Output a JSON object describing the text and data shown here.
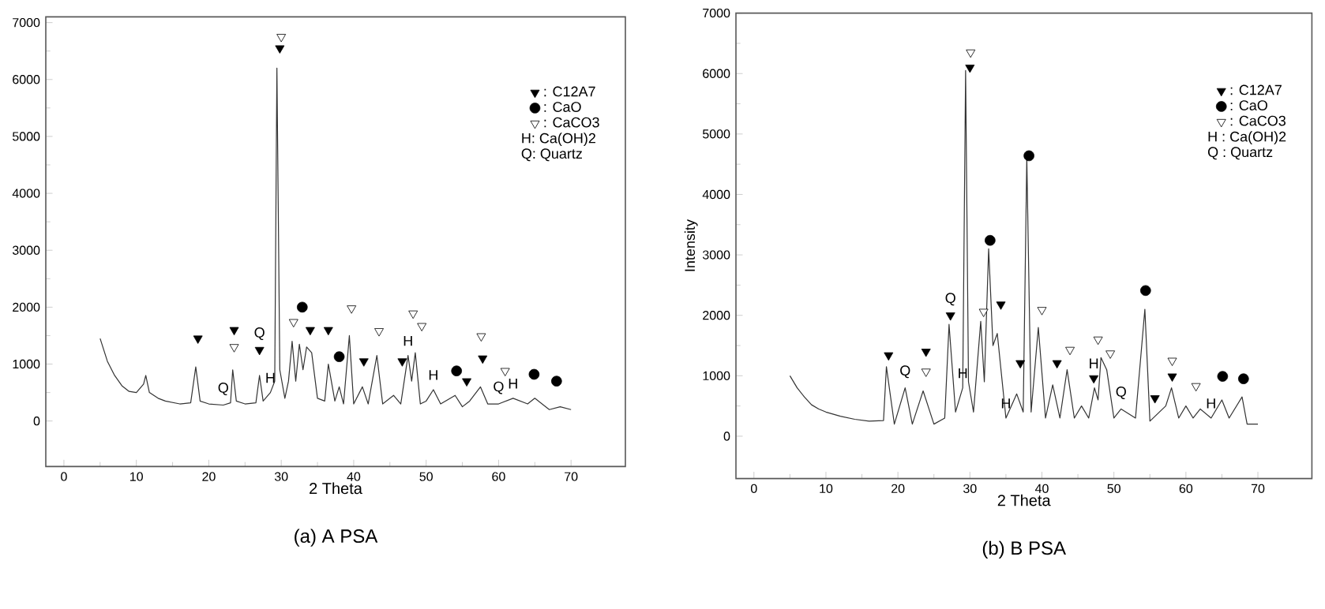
{
  "chart_data": [
    {
      "type": "line",
      "title": "(a) A PSA",
      "xlabel": "2 Theta",
      "legend": "top right",
      "xlim": [
        -2.5,
        77.5
      ],
      "ylim": [
        -800,
        7100
      ],
      "xticks": [
        0,
        10,
        20,
        30,
        40,
        50,
        60,
        70
      ],
      "yticks": [
        0,
        1000,
        2000,
        3000,
        4000,
        5000,
        6000,
        7000
      ],
      "series": [
        {
          "color": "#333333",
          "x": [
            5,
            6,
            7,
            8,
            9,
            10,
            11,
            11.3,
            11.8,
            13,
            14,
            16,
            17.5,
            18.2,
            18.8,
            20,
            22,
            23,
            23.3,
            23.8,
            25,
            26.5,
            27,
            27.5,
            28.5,
            29.1,
            29.4,
            29.8,
            30.5,
            31,
            31.5,
            32,
            32.5,
            33,
            33.5,
            34.2,
            35,
            36,
            36.5,
            37.4,
            38,
            38.6,
            39.4,
            40,
            41.2,
            42,
            43.2,
            44,
            45.5,
            46.5,
            47.5,
            48,
            48.5,
            49.2,
            50,
            51,
            52,
            54,
            55,
            56,
            57.5,
            58.5,
            60,
            62,
            64,
            65,
            67,
            68.5,
            70
          ],
          "values": [
            1450,
            1050,
            800,
            620,
            520,
            500,
            650,
            800,
            500,
            400,
            350,
            300,
            320,
            950,
            350,
            300,
            280,
            320,
            900,
            350,
            300,
            320,
            800,
            350,
            500,
            700,
            6200,
            900,
            400,
            700,
            1400,
            700,
            1350,
            900,
            1300,
            1200,
            400,
            350,
            1000,
            350,
            600,
            300,
            1500,
            300,
            600,
            300,
            1150,
            300,
            450,
            300,
            1150,
            700,
            1200,
            300,
            350,
            550,
            300,
            450,
            250,
            350,
            600,
            300,
            300,
            400,
            300,
            400,
            200,
            250,
            200
          ]
        },
        {
          "type": "scatter",
          "name": ": C12A7",
          "marker": "triangle",
          "color": "#000000",
          "x": [
            18.5,
            23.5,
            27.0,
            29.8,
            34.0,
            36.5,
            41.4,
            46.7,
            55.6,
            57.8
          ],
          "values": [
            1450,
            1600,
            1250,
            6550,
            1600,
            1600,
            1050,
            1050,
            700,
            1100
          ]
        },
        {
          "type": "scatter",
          "name": ": CaO",
          "marker": "circle",
          "color": "#000000",
          "x": [
            32.9,
            38.0,
            54.2,
            64.9,
            68.0
          ],
          "values": [
            2000,
            1130,
            880,
            820,
            700
          ]
        },
        {
          "type": "scatter",
          "name": ": CaCO3",
          "marker": "triangle",
          "color": "#ffffff",
          "x": [
            23.5,
            30.0,
            31.7,
            39.7,
            43.5,
            48.2,
            49.4,
            57.6,
            60.9
          ],
          "values": [
            1300,
            6750,
            1740,
            1980,
            1580,
            1890,
            1670,
            1490,
            880
          ]
        }
      ],
      "annotations": [
        "H: Ca(OH)2",
        "Q: Quartz",
        {
          "text": "H",
          "x": 28.5,
          "y": 500
        },
        {
          "text": "H",
          "x": 47.5,
          "y": 1150
        },
        {
          "text": "H",
          "x": 51,
          "y": 550
        },
        {
          "text": "H",
          "x": 62,
          "y": 400
        },
        {
          "text": "Q",
          "x": 22,
          "y": 280
        },
        {
          "text": "Q",
          "x": 27.0,
          "y": 1250
        },
        {
          "text": "Q",
          "x": 60,
          "y": 300
        }
      ]
    },
    {
      "type": "line",
      "title": "(b) B PSA",
      "xlabel": "2 Theta",
      "ylabel": "Intensity",
      "legend": "top right",
      "xlim": [
        -2.5,
        77.5
      ],
      "ylim": [
        -700,
        7000
      ],
      "xticks": [
        0,
        10,
        20,
        30,
        40,
        50,
        60,
        70
      ],
      "yticks": [
        0,
        1000,
        2000,
        3000,
        4000,
        5000,
        6000,
        7000
      ],
      "series": [
        {
          "color": "#333333",
          "x": [
            5,
            6,
            7,
            8,
            9,
            10,
            12,
            14,
            16,
            18,
            18.4,
            19.5,
            21,
            22,
            23.5,
            25,
            26.5,
            27.1,
            28,
            29,
            29.4,
            29.8,
            30.5,
            31.5,
            32,
            32.6,
            33.2,
            33.8,
            35,
            36.5,
            37.4,
            37.9,
            38.5,
            39.5,
            40.5,
            41.5,
            42.5,
            43.5,
            44.5,
            45.5,
            46.5,
            47.3,
            47.8,
            48.2,
            49,
            50,
            51,
            53,
            54.3,
            55,
            57.2,
            58,
            59,
            60,
            61,
            62,
            63.5,
            65,
            66,
            67.8,
            68.5,
            70
          ],
          "values": [
            1000,
            800,
            650,
            520,
            450,
            400,
            330,
            280,
            250,
            260,
            1150,
            200,
            800,
            200,
            750,
            200,
            300,
            1850,
            400,
            800,
            6050,
            900,
            400,
            1900,
            900,
            3100,
            1500,
            1700,
            300,
            700,
            400,
            4600,
            400,
            1800,
            300,
            850,
            300,
            1100,
            300,
            500,
            300,
            800,
            600,
            1300,
            1100,
            300,
            450,
            300,
            2100,
            250,
            500,
            800,
            300,
            500,
            300,
            450,
            300,
            600,
            300,
            650,
            200,
            200
          ]
        },
        {
          "type": "scatter",
          "name": ": C12A7",
          "marker": "triangle",
          "color": "#000000",
          "x": [
            18.7,
            23.9,
            27.3,
            30.0,
            34.3,
            37.0,
            42.1,
            47.2,
            55.7,
            58.1
          ],
          "values": [
            1340,
            1400,
            2000,
            6100,
            2180,
            1210,
            1210,
            960,
            630,
            990
          ]
        },
        {
          "type": "scatter",
          "name": ": CaO",
          "marker": "circle",
          "color": "#000000",
          "x": [
            32.8,
            38.2,
            54.4,
            65.1,
            68.0
          ],
          "values": [
            3240,
            4640,
            2410,
            990,
            950
          ]
        },
        {
          "type": "scatter",
          "name": ": CaCO3",
          "marker": "triangle",
          "color": "#ffffff",
          "x": [
            23.9,
            30.1,
            31.9,
            40.0,
            43.9,
            47.8,
            49.5,
            58.1,
            61.4
          ],
          "values": [
            1070,
            6350,
            2060,
            2090,
            1430,
            1600,
            1370,
            1250,
            830
          ]
        }
      ],
      "annotations": [
        "H : Ca(OH)2",
        "Q : Quartz",
        {
          "text": "H",
          "x": 29,
          "y": 800
        },
        {
          "text": "H",
          "x": 35,
          "y": 300
        },
        {
          "text": "H",
          "x": 47.2,
          "y": 960
        },
        {
          "text": "H",
          "x": 63.5,
          "y": 300
        },
        {
          "text": "Q",
          "x": 21,
          "y": 800
        },
        {
          "text": "Q",
          "x": 27.3,
          "y": 2000
        },
        {
          "text": "Q",
          "x": 51,
          "y": 450
        }
      ]
    }
  ]
}
